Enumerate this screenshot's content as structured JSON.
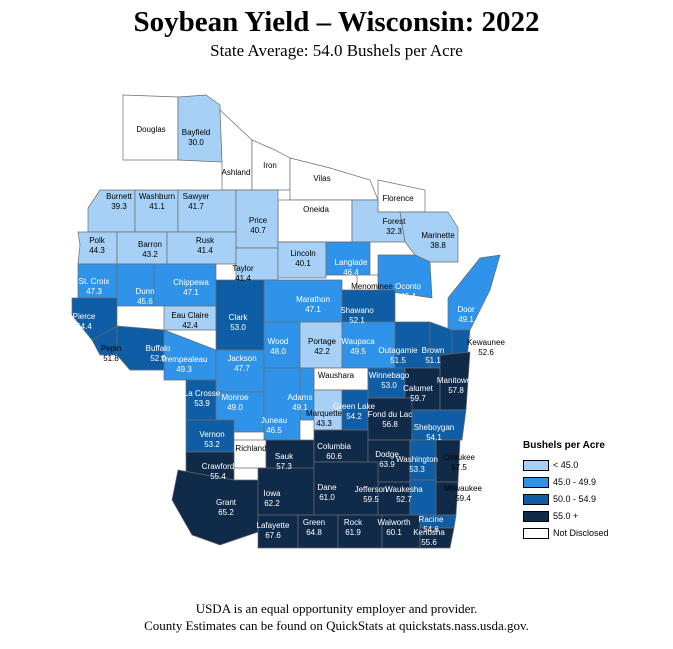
{
  "title": "Soybean Yield – Wisconsin: 2022",
  "subtitle": "State Average: 54.0 Bushels per Acre",
  "legend": {
    "title": "Bushels per Acre",
    "items": [
      {
        "label": "< 45.0",
        "color": "#a6d0f5"
      },
      {
        "label": "45.0 - 49.9",
        "color": "#2f93e9"
      },
      {
        "label": "50.0 - 54.9",
        "color": "#0f5ea5"
      },
      {
        "label": "55.0 +",
        "color": "#102b4a"
      },
      {
        "label": "Not Disclosed",
        "color": "#ffffff"
      }
    ]
  },
  "footer": {
    "line1": "USDA is an equal opportunity employer and provider.",
    "line2": "County Estimates can be found on QuickStats at quickstats.nass.usda.gov."
  },
  "counties": [
    {
      "name": "Douglas",
      "value": "",
      "cls": 4
    },
    {
      "name": "Bayfield",
      "value": "30.0",
      "cls": 0
    },
    {
      "name": "Ashland",
      "value": "",
      "cls": 4
    },
    {
      "name": "Iron",
      "value": "",
      "cls": 4
    },
    {
      "name": "Vilas",
      "value": "",
      "cls": 4
    },
    {
      "name": "Florence",
      "value": "",
      "cls": 4
    },
    {
      "name": "Oneida",
      "value": "",
      "cls": 4
    },
    {
      "name": "Burnett",
      "value": "39.3",
      "cls": 0
    },
    {
      "name": "Washburn",
      "value": "41.1",
      "cls": 0
    },
    {
      "name": "Sawyer",
      "value": "41.7",
      "cls": 0
    },
    {
      "name": "Price",
      "value": "40.7",
      "cls": 0
    },
    {
      "name": "Forest",
      "value": "32.3",
      "cls": 0
    },
    {
      "name": "Marinette",
      "value": "38.8",
      "cls": 0
    },
    {
      "name": "Polk",
      "value": "44.3",
      "cls": 0
    },
    {
      "name": "Barron",
      "value": "43.2",
      "cls": 0
    },
    {
      "name": "Rusk",
      "value": "41.4",
      "cls": 0
    },
    {
      "name": "Taylor",
      "value": "41.4",
      "cls": 0
    },
    {
      "name": "Lincoln",
      "value": "40.1",
      "cls": 0
    },
    {
      "name": "Langlade",
      "value": "46.4",
      "cls": 1
    },
    {
      "name": "Oconto",
      "value": "46.4",
      "cls": 1
    },
    {
      "name": "Menominee",
      "value": "",
      "cls": 4
    },
    {
      "name": "St. Croix",
      "value": "47.3",
      "cls": 1
    },
    {
      "name": "Dunn",
      "value": "45.6",
      "cls": 1
    },
    {
      "name": "Chippewa",
      "value": "47.1",
      "cls": 1
    },
    {
      "name": "Marathon",
      "value": "47.1",
      "cls": 1
    },
    {
      "name": "Shawano",
      "value": "52.1",
      "cls": 2
    },
    {
      "name": "Door",
      "value": "49.1",
      "cls": 1
    },
    {
      "name": "Pierce",
      "value": "54.4",
      "cls": 2
    },
    {
      "name": "Eau Claire",
      "value": "42.4",
      "cls": 0
    },
    {
      "name": "Clark",
      "value": "53.0",
      "cls": 2
    },
    {
      "name": "Pepin",
      "value": "51.8",
      "cls": 2
    },
    {
      "name": "Buffalo",
      "value": "52.0",
      "cls": 2
    },
    {
      "name": "Trempealeau",
      "value": "49.3",
      "cls": 1
    },
    {
      "name": "Jackson",
      "value": "47.7",
      "cls": 1
    },
    {
      "name": "Wood",
      "value": "48.0",
      "cls": 1
    },
    {
      "name": "Portage",
      "value": "42.2",
      "cls": 0
    },
    {
      "name": "Waupaca",
      "value": "49.5",
      "cls": 1
    },
    {
      "name": "Outagamie",
      "value": "51.5",
      "cls": 2
    },
    {
      "name": "Brown",
      "value": "51.1",
      "cls": 2
    },
    {
      "name": "Kewaunee",
      "value": "52.6",
      "cls": 2
    },
    {
      "name": "Waushara",
      "value": "",
      "cls": 4
    },
    {
      "name": "Winnebago",
      "value": "53.0",
      "cls": 2
    },
    {
      "name": "Calumet",
      "value": "59.7",
      "cls": 3
    },
    {
      "name": "Manitowoc",
      "value": "57.8",
      "cls": 3
    },
    {
      "name": "La Crosse",
      "value": "53.9",
      "cls": 2
    },
    {
      "name": "Monroe",
      "value": "49.0",
      "cls": 1
    },
    {
      "name": "Juneau",
      "value": "46.5",
      "cls": 1
    },
    {
      "name": "Adams",
      "value": "49.1",
      "cls": 1
    },
    {
      "name": "Marquette",
      "value": "43.3",
      "cls": 0
    },
    {
      "name": "Green Lake",
      "value": "54.2",
      "cls": 2
    },
    {
      "name": "Fond du Lac",
      "value": "56.8",
      "cls": 3
    },
    {
      "name": "Sheboygan",
      "value": "54.1",
      "cls": 2
    },
    {
      "name": "Vernon",
      "value": "53.2",
      "cls": 2
    },
    {
      "name": "Richland",
      "value": "",
      "cls": 4
    },
    {
      "name": "Sauk",
      "value": "57.3",
      "cls": 3
    },
    {
      "name": "Columbia",
      "value": "60.6",
      "cls": 3
    },
    {
      "name": "Dodge",
      "value": "63.9",
      "cls": 3
    },
    {
      "name": "Washington",
      "value": "53.3",
      "cls": 2
    },
    {
      "name": "Ozaukee",
      "value": "57.5",
      "cls": 3
    },
    {
      "name": "Crawford",
      "value": "55.4",
      "cls": 3
    },
    {
      "name": "Grant",
      "value": "65.2",
      "cls": 3
    },
    {
      "name": "Iowa",
      "value": "62.2",
      "cls": 3
    },
    {
      "name": "Dane",
      "value": "61.0",
      "cls": 3
    },
    {
      "name": "Jefferson",
      "value": "59.5",
      "cls": 3
    },
    {
      "name": "Waukesha",
      "value": "52.7",
      "cls": 2
    },
    {
      "name": "Milwaukee",
      "value": "59.4",
      "cls": 3
    },
    {
      "name": "Lafayette",
      "value": "67.6",
      "cls": 3
    },
    {
      "name": "Green",
      "value": "64.8",
      "cls": 3
    },
    {
      "name": "Rock",
      "value": "61.9",
      "cls": 3
    },
    {
      "name": "Walworth",
      "value": "60.1",
      "cls": 3
    },
    {
      "name": "Racine",
      "value": "54.6",
      "cls": 2
    },
    {
      "name": "Kenosha",
      "value": "55.6",
      "cls": 3
    }
  ]
}
